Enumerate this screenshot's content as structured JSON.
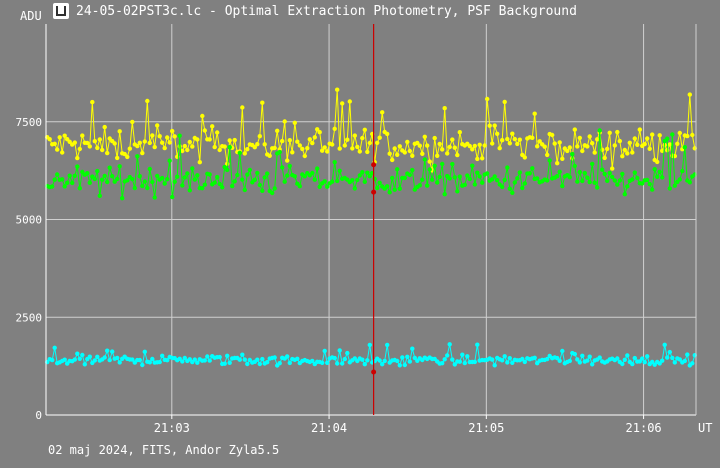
{
  "window": {
    "title": "24-05-02PST3c.lc - Optimal Extraction Photometry, PSF Background",
    "icon": "chart-app-icon"
  },
  "footer": {
    "caption": "02 maj 2024, FITS, Andor Zyla5.5"
  },
  "colors": {
    "background": "#808080",
    "grid": "#d0d0d0",
    "axis": "#ffffff",
    "cursor": "#cc0000",
    "series_yellow": "#ffff00",
    "series_green": "#00ff00",
    "series_cyan": "#00ffff"
  },
  "chart_data": {
    "type": "line",
    "title": "",
    "xlabel": "UT",
    "ylabel": "ADU",
    "xlim": [
      "21:02:12",
      "21:06:20"
    ],
    "ylim": [
      0,
      10000
    ],
    "x_ticks": [
      "21:03",
      "21:04",
      "21:05",
      "21:06"
    ],
    "y_ticks": [
      "0",
      "2500",
      "5000",
      "7500"
    ],
    "grid": true,
    "cursor_x": "21:04:17",
    "series": [
      {
        "color": "yellow",
        "points": 260,
        "mean": 6900,
        "spread": 700
      },
      {
        "color": "green",
        "points": 260,
        "mean": 6000,
        "spread": 600
      },
      {
        "color": "cyan",
        "points": 260,
        "mean": 1400,
        "spread": 200
      }
    ]
  }
}
